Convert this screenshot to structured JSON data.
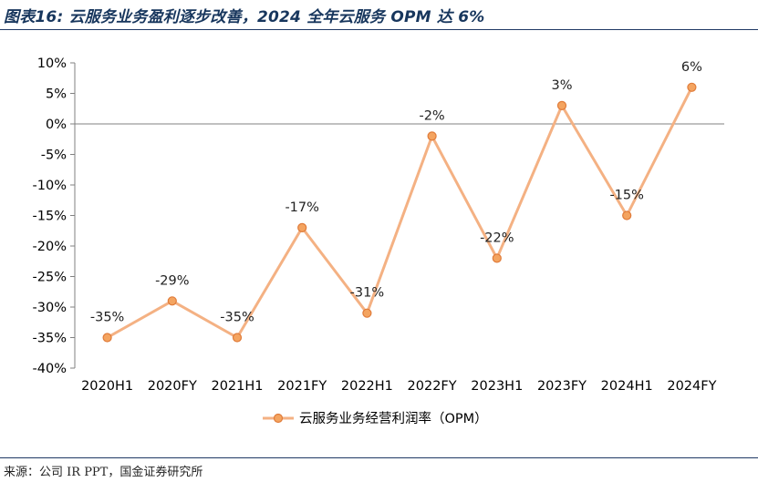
{
  "header": {
    "title": "图表16:  云服务业务盈利逐步改善，2024 全年云服务 OPM 达 6%"
  },
  "footer": {
    "source": "来源：公司 IR PPT，国金证券研究所"
  },
  "colors": {
    "line": "#f4b183",
    "marker_fill": "#f4a460",
    "marker_edge": "#e07b39",
    "rule": "#1f3864",
    "title": "#17365d"
  },
  "chart_data": {
    "type": "line",
    "title": "",
    "xlabel": "",
    "ylabel": "",
    "categories": [
      "2020H1",
      "2020FY",
      "2021H1",
      "2021FY",
      "2022H1",
      "2022FY",
      "2023H1",
      "2023FY",
      "2024H1",
      "2024FY"
    ],
    "series": [
      {
        "name": "云服务业务经营利润率（OPM）",
        "values": [
          -35,
          -29,
          -35,
          -17,
          -31,
          -2,
          -22,
          3,
          -15,
          6
        ],
        "labels": [
          "-35%",
          "-29%",
          "-35%",
          "-17%",
          "-31%",
          "-2%",
          "-22%",
          "3%",
          "-15%",
          "6%"
        ]
      }
    ],
    "ylim": [
      -40,
      10
    ],
    "yticks": [
      10,
      5,
      0,
      -5,
      -10,
      -15,
      -20,
      -25,
      -30,
      -35,
      -40
    ],
    "ytick_labels": [
      "10%",
      "5%",
      "0%",
      "-5%",
      "-10%",
      "-15%",
      "-20%",
      "-25%",
      "-30%",
      "-35%",
      "-40%"
    ],
    "grid": false,
    "legend": "bottom"
  }
}
